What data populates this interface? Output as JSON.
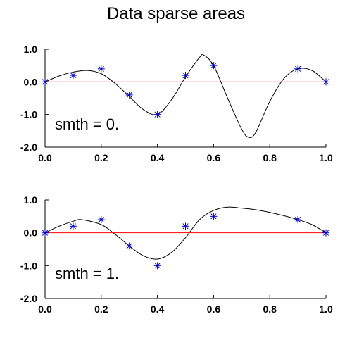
{
  "title": "Data sparse areas",
  "colors": {
    "axis": "#000000",
    "curve": "#000000",
    "zero_line": "#ff0000",
    "markers": "#0000cc"
  },
  "chart_data": [
    {
      "type": "line",
      "annotation": "smth = 0.",
      "xlim": [
        0,
        1
      ],
      "ylim": [
        -2,
        1
      ],
      "x_ticks": [
        "0.0",
        "0.2",
        "0.4",
        "0.6",
        "0.8",
        "1.0"
      ],
      "y_ticks": [
        "1.0",
        "0.0",
        "-1.0",
        "-2.0"
      ],
      "series": [
        {
          "kind": "markers",
          "x": [
            0.0,
            0.1,
            0.2,
            0.3,
            0.4,
            0.5,
            0.6,
            0.9,
            1.0
          ],
          "y": [
            0.0,
            0.2,
            0.4,
            -0.4,
            -1.0,
            0.2,
            0.5,
            0.4,
            0.0
          ]
        },
        {
          "kind": "curve",
          "x": [
            0.0,
            0.05,
            0.1,
            0.15,
            0.2,
            0.25,
            0.3,
            0.35,
            0.4,
            0.45,
            0.5,
            0.55,
            0.565,
            0.6,
            0.65,
            0.7,
            0.725,
            0.75,
            0.8,
            0.85,
            0.9,
            0.95,
            1.0
          ],
          "y": [
            0.0,
            0.18,
            0.3,
            0.35,
            0.25,
            -0.05,
            -0.45,
            -0.85,
            -1.0,
            -0.55,
            0.15,
            0.75,
            0.82,
            0.5,
            -0.5,
            -1.45,
            -1.7,
            -1.55,
            -0.6,
            0.1,
            0.4,
            0.35,
            0.0
          ]
        },
        {
          "kind": "zero-line",
          "x": [
            0.0,
            1.0
          ],
          "y": [
            0.0,
            0.0
          ]
        }
      ]
    },
    {
      "type": "line",
      "annotation": "smth = 1.",
      "xlim": [
        0,
        1
      ],
      "ylim": [
        -2,
        1
      ],
      "x_ticks": [
        "0.0",
        "0.2",
        "0.4",
        "0.6",
        "0.8",
        "1.0"
      ],
      "y_ticks": [
        "1.0",
        "0.0",
        "-1.0",
        "-2.0"
      ],
      "series": [
        {
          "kind": "markers",
          "x": [
            0.0,
            0.1,
            0.2,
            0.3,
            0.4,
            0.5,
            0.6,
            0.9,
            1.0
          ],
          "y": [
            0.0,
            0.2,
            0.4,
            -0.4,
            -1.0,
            0.2,
            0.5,
            0.4,
            0.0
          ]
        },
        {
          "kind": "curve",
          "x": [
            0.0,
            0.05,
            0.1,
            0.13,
            0.2,
            0.25,
            0.3,
            0.35,
            0.4,
            0.45,
            0.5,
            0.55,
            0.6,
            0.65,
            0.7,
            0.75,
            0.8,
            0.85,
            0.9,
            0.95,
            1.0
          ],
          "y": [
            0.0,
            0.2,
            0.35,
            0.4,
            0.25,
            -0.05,
            -0.4,
            -0.7,
            -0.8,
            -0.6,
            -0.15,
            0.4,
            0.68,
            0.78,
            0.75,
            0.7,
            0.62,
            0.52,
            0.4,
            0.25,
            0.0
          ]
        },
        {
          "kind": "zero-line",
          "x": [
            0.0,
            1.0
          ],
          "y": [
            0.0,
            0.0
          ]
        }
      ]
    }
  ]
}
